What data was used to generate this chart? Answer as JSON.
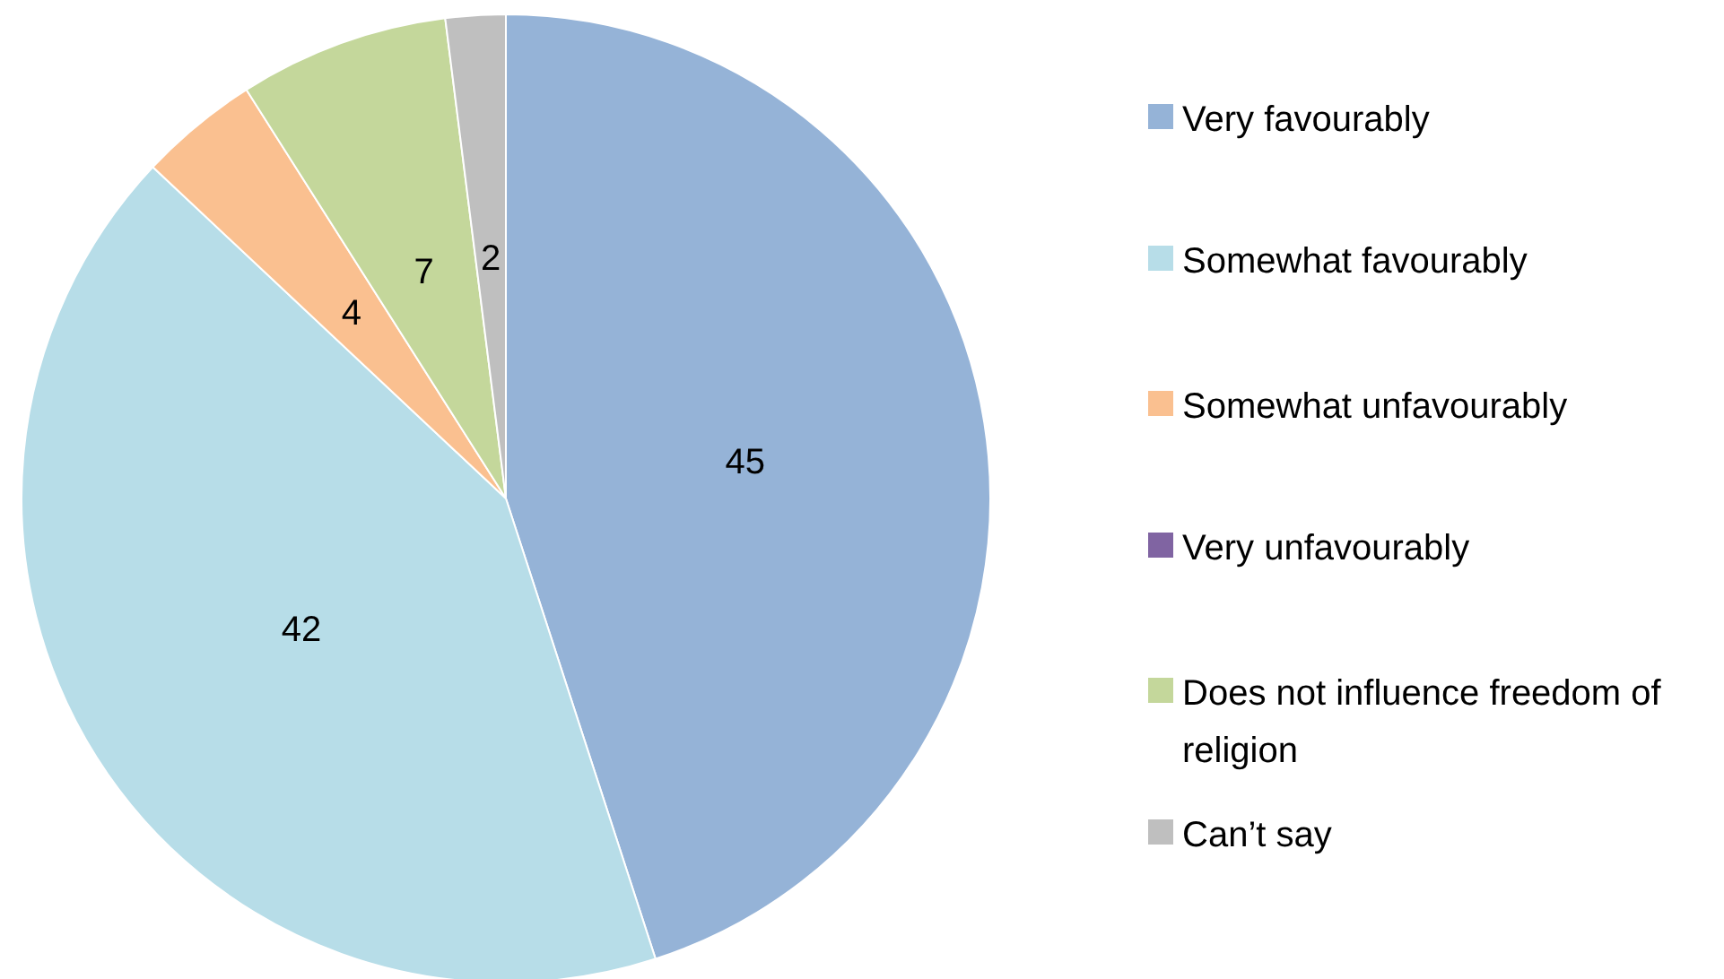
{
  "chart_data": {
    "type": "pie",
    "categories": [
      "Very favourably",
      "Somewhat favourably",
      "Somewhat unfavourably",
      "Very unfavourably",
      "Does not influence freedom of religion",
      "Can’t say"
    ],
    "values": [
      45,
      42,
      4,
      0,
      7,
      2
    ],
    "colors": [
      "#95b3d7",
      "#b7dde8",
      "#fac090",
      "#8064a2",
      "#c4d79b",
      "#bfbfbf"
    ],
    "value_labels": [
      "45",
      "42",
      "4",
      null,
      "7",
      "2"
    ],
    "legend": "right"
  }
}
